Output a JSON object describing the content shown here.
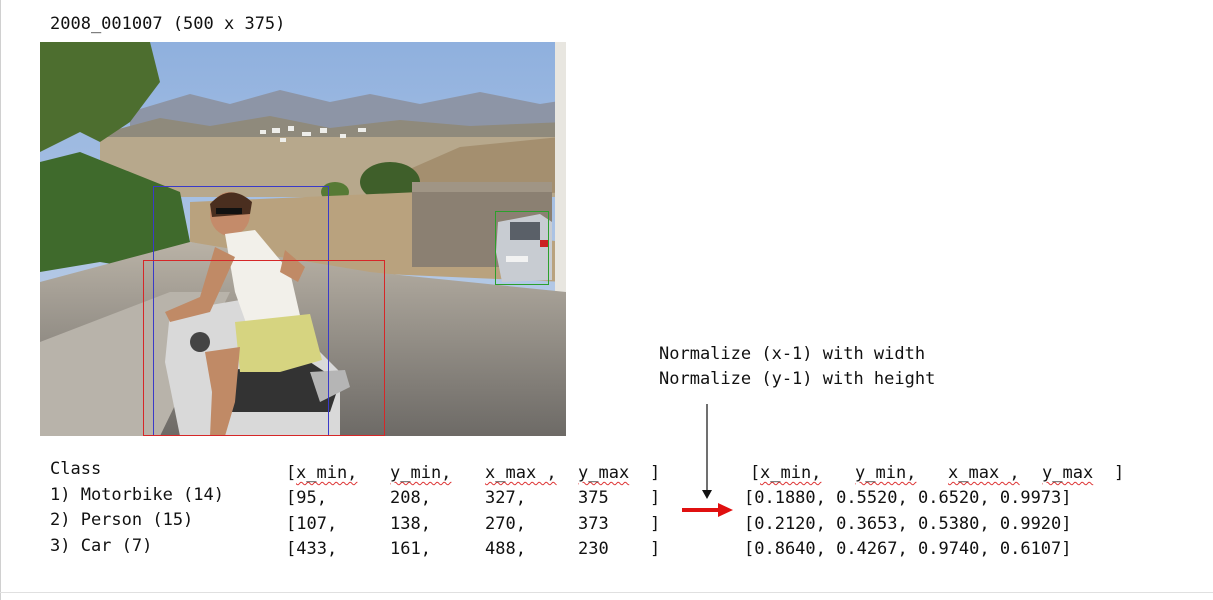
{
  "image_title": "2008_001007 (500 x 375)",
  "photo": {
    "description_icon": "photo-woman-on-scooter",
    "boxes": [
      {
        "name": "motorbike-bbox",
        "color": "#d62728"
      },
      {
        "name": "person-bbox",
        "color": "#3a3ac8"
      },
      {
        "name": "car-bbox",
        "color": "#2ca02c"
      }
    ]
  },
  "classes": {
    "heading": "Class",
    "items": [
      "1) Motorbike (14)",
      "2) Person (15)",
      "3) Car (7)"
    ]
  },
  "raw_table": {
    "open": "[",
    "headers": [
      "x_min,",
      "y_min,",
      "x_max ,",
      "y_max",
      "]"
    ],
    "rows": [
      [
        "[95,",
        "208,",
        "327,",
        "375",
        "]"
      ],
      [
        "[107,",
        "138,",
        "270,",
        "373",
        "]"
      ],
      [
        "[433,",
        "161,",
        "488,",
        "230",
        "]"
      ]
    ]
  },
  "note": {
    "line1": "Normalize (x-1) with width",
    "line2": "Normalize (y-1) with height"
  },
  "norm_table": {
    "open": "[",
    "headers": [
      "x_min,",
      "y_min,",
      "x_max ,",
      "y_max",
      "]"
    ],
    "rows": [
      "[0.1880, 0.5520, 0.6520, 0.9973]",
      "[0.2120, 0.3653, 0.5380, 0.9920]",
      "[0.8640, 0.4267, 0.9740, 0.6107]"
    ]
  },
  "colors": {
    "arrow_red": "#e01010",
    "arrow_black": "#111111"
  }
}
